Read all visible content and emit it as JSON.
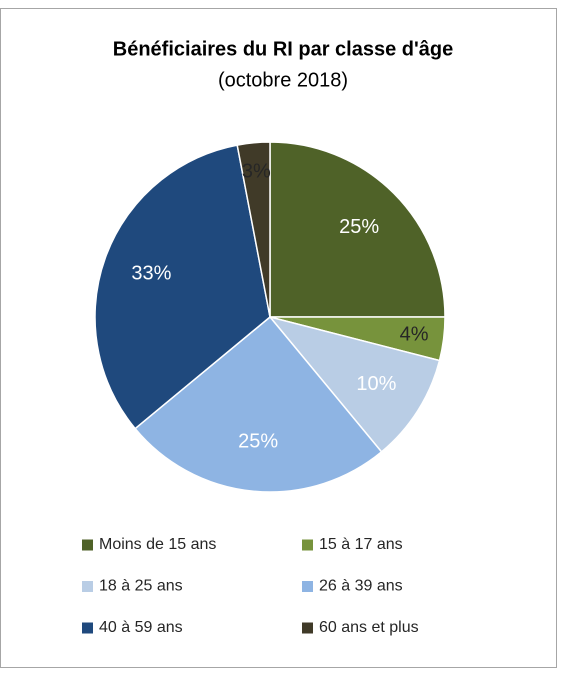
{
  "chart_data": {
    "type": "pie",
    "title": "Bénéficiaires du RI par classe d'âge",
    "subtitle": "(octobre 2018)",
    "categories": [
      "Moins de 15 ans",
      "15 à 17 ans",
      "18 à 25 ans",
      "26 à 39 ans",
      "40 à 59 ans",
      "60 ans et plus"
    ],
    "values": [
      25,
      4,
      10,
      25,
      33,
      3
    ],
    "value_labels": [
      "25%",
      "4%",
      "10%",
      "25%",
      "33%",
      "3%"
    ],
    "colors": [
      "#4f6228",
      "#77933c",
      "#b9cde5",
      "#8eb4e3",
      "#1f497d",
      "#403a28"
    ],
    "label_colors": [
      "#ffffff",
      "#262626",
      "#ffffff",
      "#ffffff",
      "#ffffff",
      "#262626"
    ],
    "legend": "bottom"
  }
}
